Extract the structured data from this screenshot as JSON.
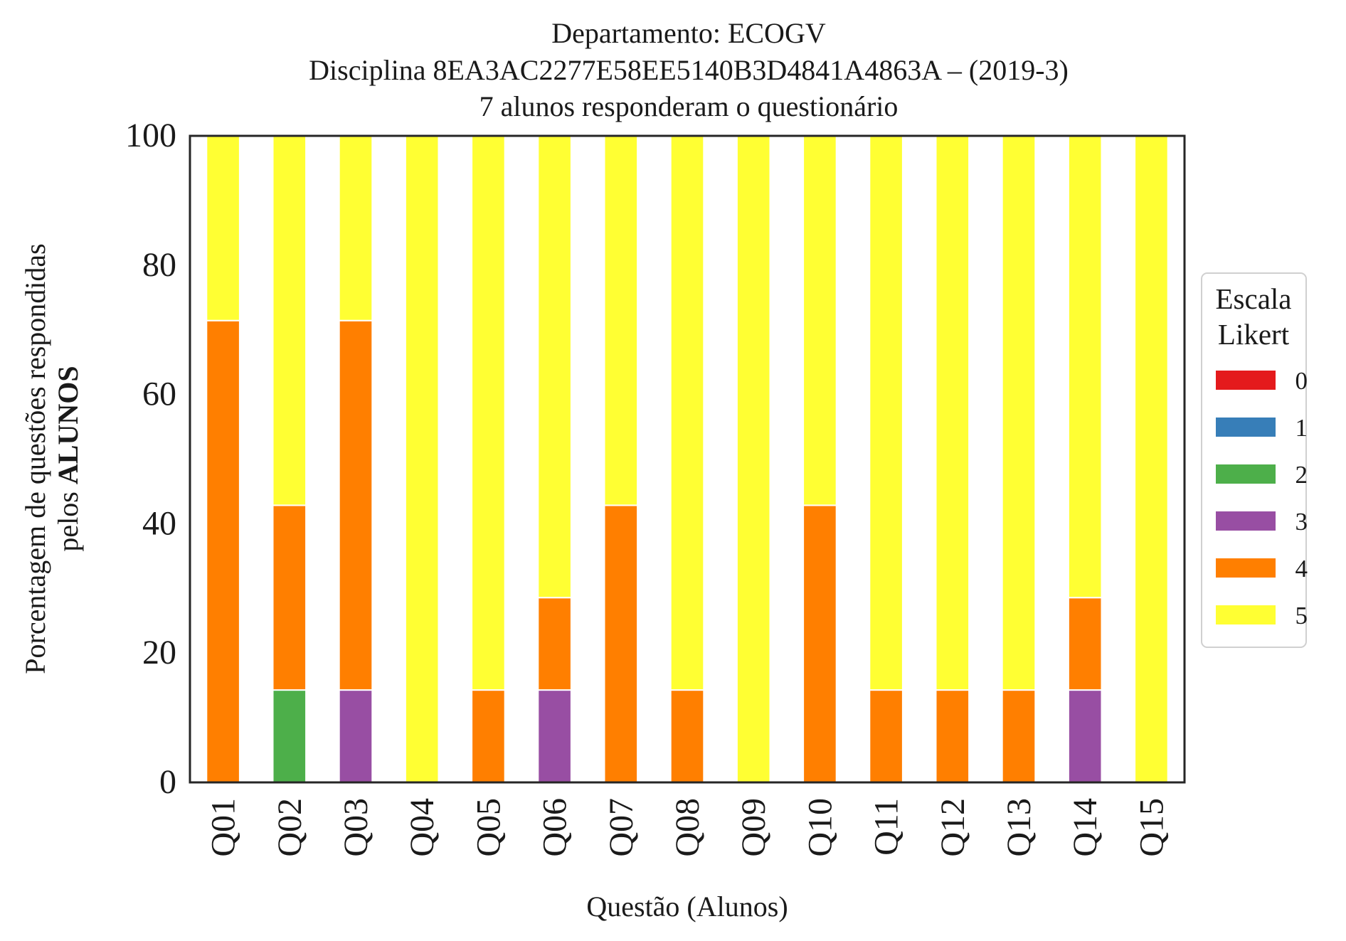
{
  "chart_data": {
    "type": "bar",
    "stacked": true,
    "title": [
      "Departamento: ECOGV",
      "Disciplina 8EA3AC2277E58EE5140B3D4841A4863A – (2019-3)",
      "7 alunos responderam o questionário"
    ],
    "xlabel": "Questão (Alunos)",
    "ylabel_line1": "Porcentagem de questões respondidas",
    "ylabel_line2_prefix": "pelos ",
    "ylabel_line2_bold": "ALUNOS",
    "ylim": [
      0,
      100
    ],
    "yticks": [
      "0",
      "20",
      "40",
      "60",
      "80",
      "100"
    ],
    "grid": false,
    "legend_title": [
      "Escala",
      "Likert"
    ],
    "legend_position": "center-right, outside plot",
    "categories": [
      "Q01",
      "Q02",
      "Q03",
      "Q04",
      "Q05",
      "Q06",
      "Q07",
      "Q08",
      "Q09",
      "Q10",
      "Q11",
      "Q12",
      "Q13",
      "Q14",
      "Q15"
    ],
    "series": [
      {
        "name": "0",
        "color": "#e41a1c",
        "values": [
          0,
          0,
          0,
          0,
          0,
          0,
          0,
          0,
          0,
          0,
          0,
          0,
          0,
          0,
          0
        ]
      },
      {
        "name": "1",
        "color": "#377eb8",
        "values": [
          0,
          0,
          0,
          0,
          0,
          0,
          0,
          0,
          0,
          0,
          0,
          0,
          0,
          0,
          0
        ]
      },
      {
        "name": "2",
        "color": "#4daf4a",
        "values": [
          0,
          14.29,
          0,
          0,
          0,
          0,
          0,
          0,
          0,
          0,
          0,
          0,
          0,
          0,
          0
        ]
      },
      {
        "name": "3",
        "color": "#984ea3",
        "values": [
          0,
          0,
          14.29,
          0,
          0,
          14.29,
          0,
          0,
          0,
          0,
          0,
          0,
          0,
          14.29,
          0
        ]
      },
      {
        "name": "4",
        "color": "#ff7f00",
        "values": [
          71.43,
          28.57,
          57.14,
          0,
          14.29,
          14.29,
          42.86,
          14.29,
          0,
          42.86,
          14.29,
          14.29,
          14.29,
          14.29,
          0
        ]
      },
      {
        "name": "5",
        "color": "#ffff33",
        "values": [
          28.57,
          57.14,
          28.57,
          100,
          85.71,
          71.43,
          57.14,
          85.71,
          100,
          57.14,
          85.71,
          85.71,
          85.71,
          71.43,
          100
        ]
      }
    ]
  }
}
